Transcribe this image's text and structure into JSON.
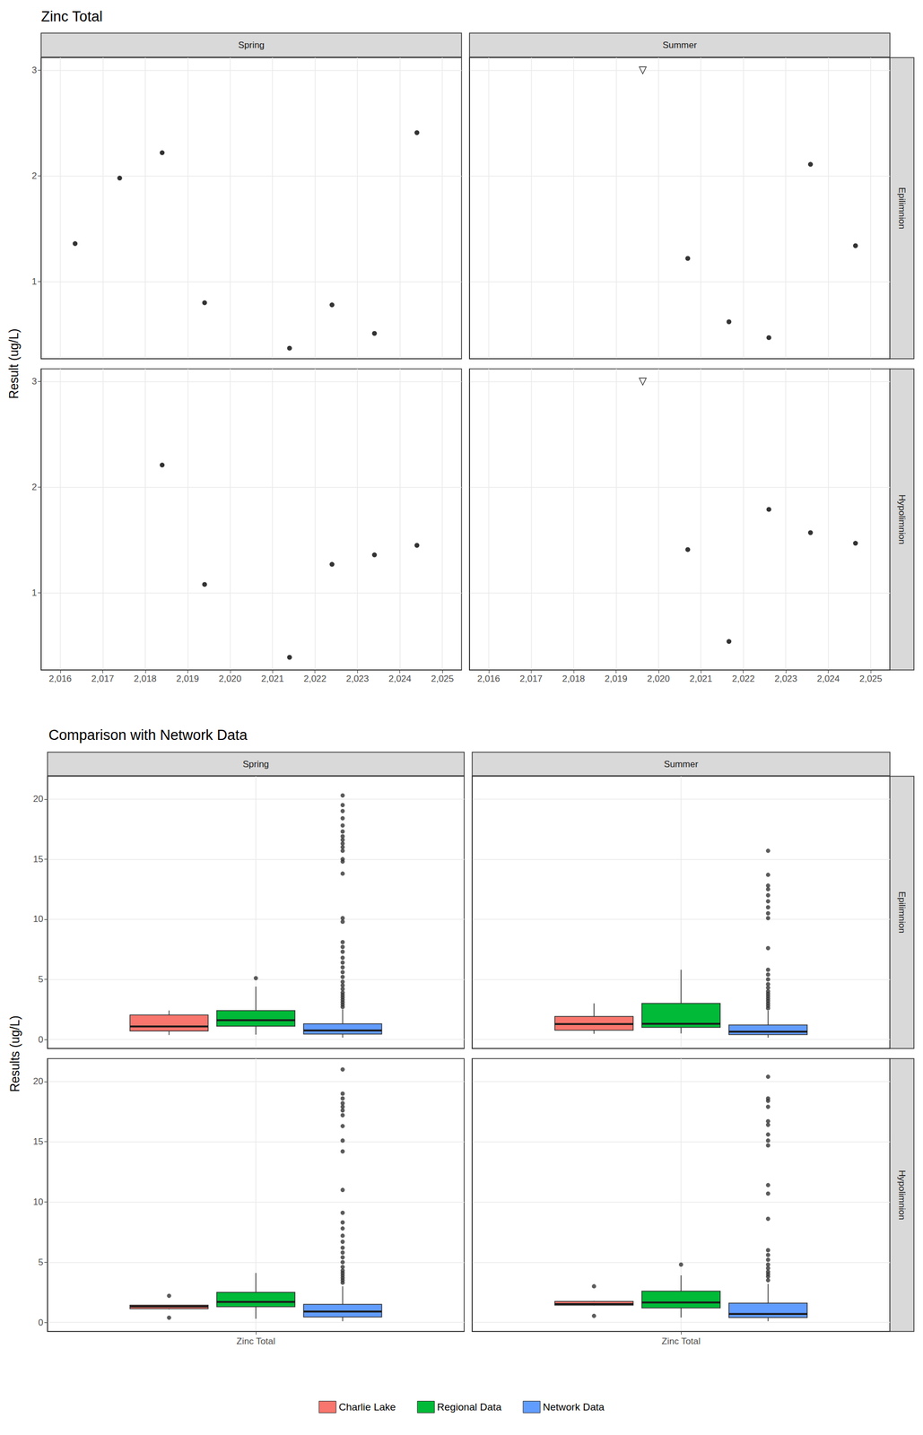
{
  "chart_data": [
    {
      "type": "scatter",
      "title": "Zinc Total",
      "y_label": "Result (ug/L)",
      "columns": [
        "Spring",
        "Summer"
      ],
      "rows": [
        "Epilimnion",
        "Hypolimnion"
      ],
      "xlim": [
        2015.55,
        2025.45
      ],
      "xticks": [
        2016,
        2017,
        2018,
        2019,
        2020,
        2021,
        2022,
        2023,
        2024,
        2025
      ],
      "ylim": [
        0.27,
        3.12
      ],
      "yticks": [
        1,
        2,
        3
      ],
      "grid": true,
      "panels": [
        {
          "column": "Spring",
          "row": "Epilimnion",
          "series": [
            {
              "marker": "circle",
              "color": "#000000",
              "x": [
                2016.35,
                2017.4,
                2018.4,
                2019.4,
                2021.4,
                2022.4,
                2023.4,
                2024.4
              ],
              "values": [
                1.36,
                1.98,
                2.22,
                0.8,
                0.37,
                0.78,
                0.51,
                2.41
              ]
            }
          ]
        },
        {
          "column": "Summer",
          "row": "Epilimnion",
          "series": [
            {
              "marker": "circle",
              "color": "#000000",
              "x": [
                2020.69,
                2021.66,
                2022.6,
                2023.58,
                2024.64
              ],
              "values": [
                1.22,
                0.62,
                0.47,
                2.11,
                1.34
              ]
            },
            {
              "marker": "triangle-down-open",
              "color": "#000000",
              "x": [
                2019.63
              ],
              "values": [
                3
              ]
            }
          ]
        },
        {
          "column": "Spring",
          "row": "Hypolimnion",
          "series": [
            {
              "marker": "circle",
              "color": "#000000",
              "x": [
                2018.4,
                2019.4,
                2021.4,
                2022.4,
                2023.4,
                2024.4
              ],
              "values": [
                2.21,
                1.08,
                0.39,
                1.27,
                1.36,
                1.45
              ]
            }
          ]
        },
        {
          "column": "Summer",
          "row": "Hypolimnion",
          "series": [
            {
              "marker": "circle",
              "color": "#000000",
              "x": [
                2020.69,
                2021.66,
                2022.6,
                2023.58,
                2024.64
              ],
              "values": [
                1.41,
                0.54,
                1.79,
                1.57,
                1.47
              ]
            },
            {
              "marker": "triangle-down-open",
              "color": "#000000",
              "x": [
                2019.63
              ],
              "values": [
                3
              ]
            }
          ]
        }
      ]
    },
    {
      "type": "boxplot",
      "title": "Comparison with Network Data",
      "y_label": "Results (ug/L)",
      "categories": [
        "Zinc Total"
      ],
      "columns": [
        "Spring",
        "Summer"
      ],
      "rows": [
        "Epilimnion",
        "Hypolimnion"
      ],
      "ylim": [
        -0.75,
        21.9
      ],
      "yticks": [
        0,
        5,
        10,
        15,
        20
      ],
      "grid": true,
      "legend": "bottom",
      "groups": [
        {
          "name": "Charlie Lake",
          "color": "#F8766D"
        },
        {
          "name": "Regional Data",
          "color": "#00BA38"
        },
        {
          "name": "Network Data",
          "color": "#619CFF"
        }
      ],
      "panels": [
        {
          "column": "Spring",
          "row": "Epilimnion",
          "boxes": [
            {
              "group": "Charlie Lake",
              "whisker_low": 0.37,
              "q1": 0.71,
              "median": 1.08,
              "q3": 2.04,
              "whisker_high": 2.41,
              "outliers": []
            },
            {
              "group": "Regional Data",
              "whisker_low": 0.4,
              "q1": 1.1,
              "median": 1.6,
              "q3": 2.4,
              "whisker_high": 4.4,
              "outliers": [
                5.1
              ]
            },
            {
              "group": "Network Data",
              "whisker_low": 0.15,
              "q1": 0.45,
              "median": 0.75,
              "q3": 1.3,
              "whisker_high": 2.5,
              "outliers": [
                2.7,
                2.9,
                3.1,
                3.3,
                3.5,
                3.7,
                3.9,
                4.2,
                4.5,
                4.8,
                5.2,
                5.6,
                6.0,
                6.4,
                6.8,
                7.3,
                7.7,
                8.1,
                9.8,
                10.1,
                13.8,
                14.8,
                15.0,
                15.7,
                16.0,
                16.3,
                16.6,
                16.9,
                17.3,
                17.8,
                18.4,
                19.0,
                19.5,
                20.3
              ]
            }
          ]
        },
        {
          "column": "Summer",
          "row": "Epilimnion",
          "boxes": [
            {
              "group": "Charlie Lake",
              "whisker_low": 0.47,
              "q1": 0.77,
              "median": 1.28,
              "q3": 1.92,
              "whisker_high": 3.0,
              "outliers": []
            },
            {
              "group": "Regional Data",
              "whisker_low": 0.5,
              "q1": 1.0,
              "median": 1.3,
              "q3": 3.0,
              "whisker_high": 5.8,
              "outliers": []
            },
            {
              "group": "Network Data",
              "whisker_low": 0.15,
              "q1": 0.4,
              "median": 0.65,
              "q3": 1.2,
              "whisker_high": 2.4,
              "outliers": [
                2.6,
                2.8,
                3.0,
                3.2,
                3.4,
                3.6,
                3.8,
                4.0,
                4.3,
                4.6,
                5.0,
                5.4,
                5.8,
                7.6,
                10.1,
                10.5,
                11.0,
                11.5,
                12.0,
                12.5,
                12.8,
                13.7,
                15.7
              ]
            }
          ]
        },
        {
          "column": "Spring",
          "row": "Hypolimnion",
          "boxes": [
            {
              "group": "Charlie Lake",
              "whisker_low": 1.08,
              "q1": 1.13,
              "median": 1.32,
              "q3": 1.43,
              "whisker_high": 1.45,
              "outliers": [
                0.39,
                2.21
              ]
            },
            {
              "group": "Regional Data",
              "whisker_low": 0.3,
              "q1": 1.3,
              "median": 1.7,
              "q3": 2.5,
              "whisker_high": 4.1,
              "outliers": []
            },
            {
              "group": "Network Data",
              "whisker_low": 0.1,
              "q1": 0.45,
              "median": 0.9,
              "q3": 1.5,
              "whisker_high": 3.0,
              "outliers": [
                3.3,
                3.5,
                3.7,
                3.9,
                4.1,
                4.3,
                4.6,
                5.0,
                5.4,
                5.8,
                6.2,
                6.7,
                7.2,
                7.8,
                8.3,
                9.1,
                11.0,
                14.2,
                15.1,
                16.3,
                17.2,
                17.6,
                17.9,
                18.2,
                18.6,
                19.0,
                21.0
              ]
            }
          ]
        },
        {
          "column": "Summer",
          "row": "Hypolimnion",
          "boxes": [
            {
              "group": "Charlie Lake",
              "whisker_low": 1.41,
              "q1": 1.43,
              "median": 1.52,
              "q3": 1.74,
              "whisker_high": 1.79,
              "outliers": [
                0.54,
                3.0
              ]
            },
            {
              "group": "Regional Data",
              "whisker_low": 0.4,
              "q1": 1.2,
              "median": 1.65,
              "q3": 2.6,
              "whisker_high": 3.9,
              "outliers": [
                4.8
              ]
            },
            {
              "group": "Network Data",
              "whisker_low": 0.1,
              "q1": 0.4,
              "median": 0.7,
              "q3": 1.6,
              "whisker_high": 3.2,
              "outliers": [
                3.5,
                3.8,
                4.0,
                4.2,
                4.5,
                4.8,
                5.2,
                5.6,
                6.0,
                8.6,
                10.7,
                11.4,
                14.7,
                15.1,
                15.6,
                16.4,
                16.7,
                17.9,
                18.4,
                18.6,
                20.4
              ]
            }
          ]
        }
      ]
    }
  ]
}
